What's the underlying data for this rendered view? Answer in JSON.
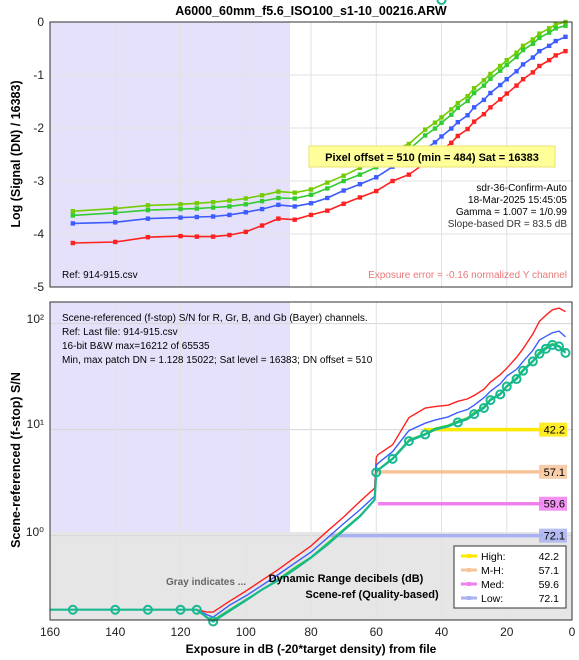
{
  "figure_title": "A6000_60mm_f5.6_ISO100_s1-10_00216.ARW",
  "top_panel": {
    "ylabel": "Log (Signal (DN) / 16383)",
    "yticks": [
      "0",
      "-1",
      "-2",
      "-3",
      "-4",
      "-5"
    ],
    "pixel_offset_box": "Pixel offset = 510  (min = 484)  Sat = 16383",
    "info_lines": [
      "sdr-36-Confirm-Auto",
      "18-Mar-2025 15:45:05",
      "Gamma = 1.007 = 1/0.99",
      "Slope-based DR = 83.5 dB"
    ],
    "ref_text": "Ref: 914-915.csv",
    "exposure_error": "Exposure error = -0.16 normalized Y channel"
  },
  "bottom_panel": {
    "ylabel": "Scene-referenced (f-stop) S/N",
    "yticks": [
      "10²",
      "10¹",
      "10⁰"
    ],
    "info_lines": [
      "Scene-referenced (f-stop) S/N for R, Gr, B, and Gb (Bayer) channels.",
      "Ref: Last file: 914-915.csv",
      "16-bit B&W  max=16212 of 65535",
      "Min, max patch DN = 1.128  15022;   Sat level = 16383;   DN offset = 510"
    ],
    "gray_note": "Gray indicates ...",
    "dr_title_1": "Dynamic Range decibels (dB)",
    "dr_title_2": "Scene-ref (Quality-based)",
    "dr_markers": [
      "42.2",
      "57.1",
      "59.6",
      "72.1"
    ],
    "legend": [
      {
        "label": "High:",
        "value": "42.2",
        "color": "#ffe800"
      },
      {
        "label": "M-H:",
        "value": "57.1",
        "color": "#f7c49a"
      },
      {
        "label": "Med:",
        "value": "59.6",
        "color": "#f080f0"
      },
      {
        "label": "Low:",
        "value": "72.1",
        "color": "#a8b2f0"
      }
    ]
  },
  "xaxis": {
    "label": "Exposure in dB (-20*target density)   from file",
    "ticks": [
      "160",
      "140",
      "120",
      "100",
      "80",
      "60",
      "40",
      "20",
      "0"
    ]
  },
  "colors": {
    "red": "#ff2020",
    "green": "#72cc00",
    "greenGb": "#30cc30",
    "blue": "#3c5cff",
    "teal": "#18b890",
    "lavender": "#e6e1fb",
    "gray": "#e4e4e4"
  },
  "chart_data": [
    {
      "type": "line",
      "title": "A6000_60mm_f5.6_ISO100_s1-10_00216.ARW",
      "xlabel": "Exposure in dB (-20*target density)   from file",
      "ylabel": "Log (Signal (DN) / 16383)",
      "xlim": [
        160,
        0
      ],
      "ylim": [
        -5,
        0
      ],
      "grid": true,
      "x": [
        153,
        140,
        130,
        120,
        115,
        110,
        105,
        100,
        95,
        90,
        85,
        80,
        75,
        70,
        65,
        60,
        55,
        50,
        45,
        42,
        40,
        37,
        35,
        32,
        30,
        27,
        25,
        22,
        20,
        17,
        15,
        12,
        10,
        7,
        5,
        2
      ],
      "series": [
        {
          "values": [
            -3.57,
            -3.52,
            -3.46,
            -3.44,
            -3.42,
            -3.4,
            -3.37,
            -3.33,
            -3.27,
            -3.2,
            -3.22,
            -3.16,
            -3.03,
            -2.9,
            -2.75,
            -2.62,
            -2.42,
            -2.3,
            -2.03,
            -1.9,
            -1.8,
            -1.65,
            -1.53,
            -1.4,
            -1.25,
            -1.1,
            -0.98,
            -0.83,
            -0.72,
            -0.58,
            -0.45,
            -0.33,
            -0.22,
            -0.12,
            -0.05,
            0.0
          ]
        },
        {
          "values": [
            -3.65,
            -3.6,
            -3.55,
            -3.53,
            -3.52,
            -3.5,
            -3.48,
            -3.44,
            -3.38,
            -3.32,
            -3.33,
            -3.26,
            -3.14,
            -3.0,
            -2.88,
            -2.74,
            -2.53,
            -2.41,
            -2.14,
            -2.01,
            -1.9,
            -1.75,
            -1.62,
            -1.49,
            -1.34,
            -1.2,
            -1.07,
            -0.92,
            -0.81,
            -0.66,
            -0.53,
            -0.41,
            -0.3,
            -0.2,
            -0.12,
            -0.07
          ]
        },
        {
          "values": [
            -3.8,
            -3.78,
            -3.71,
            -3.69,
            -3.68,
            -3.67,
            -3.64,
            -3.59,
            -3.53,
            -3.45,
            -3.48,
            -3.42,
            -3.32,
            -3.18,
            -3.06,
            -2.93,
            -2.73,
            -2.61,
            -2.4,
            -2.27,
            -2.16,
            -2.01,
            -1.89,
            -1.76,
            -1.61,
            -1.47,
            -1.34,
            -1.19,
            -1.08,
            -0.93,
            -0.8,
            -0.67,
            -0.55,
            -0.45,
            -0.36,
            -0.28
          ]
        },
        {
          "values": [
            -4.17,
            -4.15,
            -4.06,
            -4.04,
            -4.05,
            -4.05,
            -4.02,
            -3.96,
            -3.84,
            -3.71,
            -3.73,
            -3.64,
            -3.56,
            -3.43,
            -3.31,
            -3.19,
            -3.0,
            -2.88,
            -2.66,
            -2.54,
            -2.42,
            -2.28,
            -2.15,
            -2.02,
            -1.88,
            -1.74,
            -1.61,
            -1.46,
            -1.35,
            -1.2,
            -1.08,
            -0.95,
            -0.83,
            -0.72,
            -0.63,
            -0.55
          ]
        }
      ]
    },
    {
      "type": "line",
      "xlabel": "Exposure in dB (-20*target density)   from file",
      "ylabel": "Scene-referenced (f-stop) S/N",
      "xlim": [
        160,
        0
      ],
      "ylim": [
        0.16,
        160
      ],
      "yscale": "log",
      "grid": true,
      "x": [
        160,
        153,
        140,
        130,
        120,
        115,
        112,
        110,
        105,
        100,
        95,
        90,
        85,
        80,
        75,
        70,
        65,
        60.5,
        60,
        59.5,
        55,
        50,
        45,
        42,
        38,
        35,
        32,
        30,
        27,
        25,
        22,
        20,
        17,
        15,
        12,
        10,
        8,
        6,
        4,
        2
      ],
      "series": [
        {
          "values": [
            0.2,
            0.2,
            0.2,
            0.2,
            0.2,
            0.2,
            0.19,
            0.19,
            0.24,
            0.3,
            0.38,
            0.48,
            0.62,
            0.8,
            1.1,
            1.5,
            2.1,
            2.8,
            5.5,
            5.8,
            7.2,
            13,
            16,
            16.5,
            17,
            18.5,
            19.5,
            21,
            24,
            28,
            33,
            38,
            48,
            58,
            80,
            105,
            120,
            135,
            140,
            130
          ]
        },
        {
          "values": [
            0.2,
            0.2,
            0.2,
            0.2,
            0.2,
            0.2,
            0.18,
            0.17,
            0.22,
            0.27,
            0.34,
            0.43,
            0.55,
            0.7,
            0.95,
            1.3,
            1.75,
            2.35,
            4.6,
            4.8,
            6.2,
            9.8,
            11.5,
            12.3,
            13.2,
            14.5,
            15.5,
            17,
            20,
            23,
            27,
            32,
            37,
            44,
            56,
            70,
            76,
            82,
            85,
            75
          ]
        },
        {
          "values": [
            0.2,
            0.2,
            0.2,
            0.2,
            0.2,
            0.2,
            0.17,
            0.16,
            0.2,
            0.25,
            0.31,
            0.39,
            0.5,
            0.63,
            0.85,
            1.15,
            1.55,
            2.2,
            4.0,
            4.2,
            5.4,
            8.0,
            9.2,
            10.3,
            11,
            12,
            13,
            14.5,
            16.5,
            19.5,
            22,
            26,
            31,
            37,
            45,
            54,
            60,
            65,
            62,
            55
          ]
        },
        {
          "values": [
            0.2,
            0.2,
            0.2,
            0.2,
            0.2,
            0.2,
            0.17,
            0.155,
            0.195,
            0.245,
            0.31,
            0.38,
            0.48,
            0.62,
            0.82,
            1.12,
            1.52,
            2.18,
            3.95,
            4.15,
            5.3,
            7.8,
            9.0,
            10.0,
            10.7,
            11.7,
            12.6,
            14,
            16,
            19,
            21.5,
            25.5,
            30,
            36,
            44,
            52,
            58,
            63,
            61,
            53
          ]
        }
      ]
    }
  ]
}
